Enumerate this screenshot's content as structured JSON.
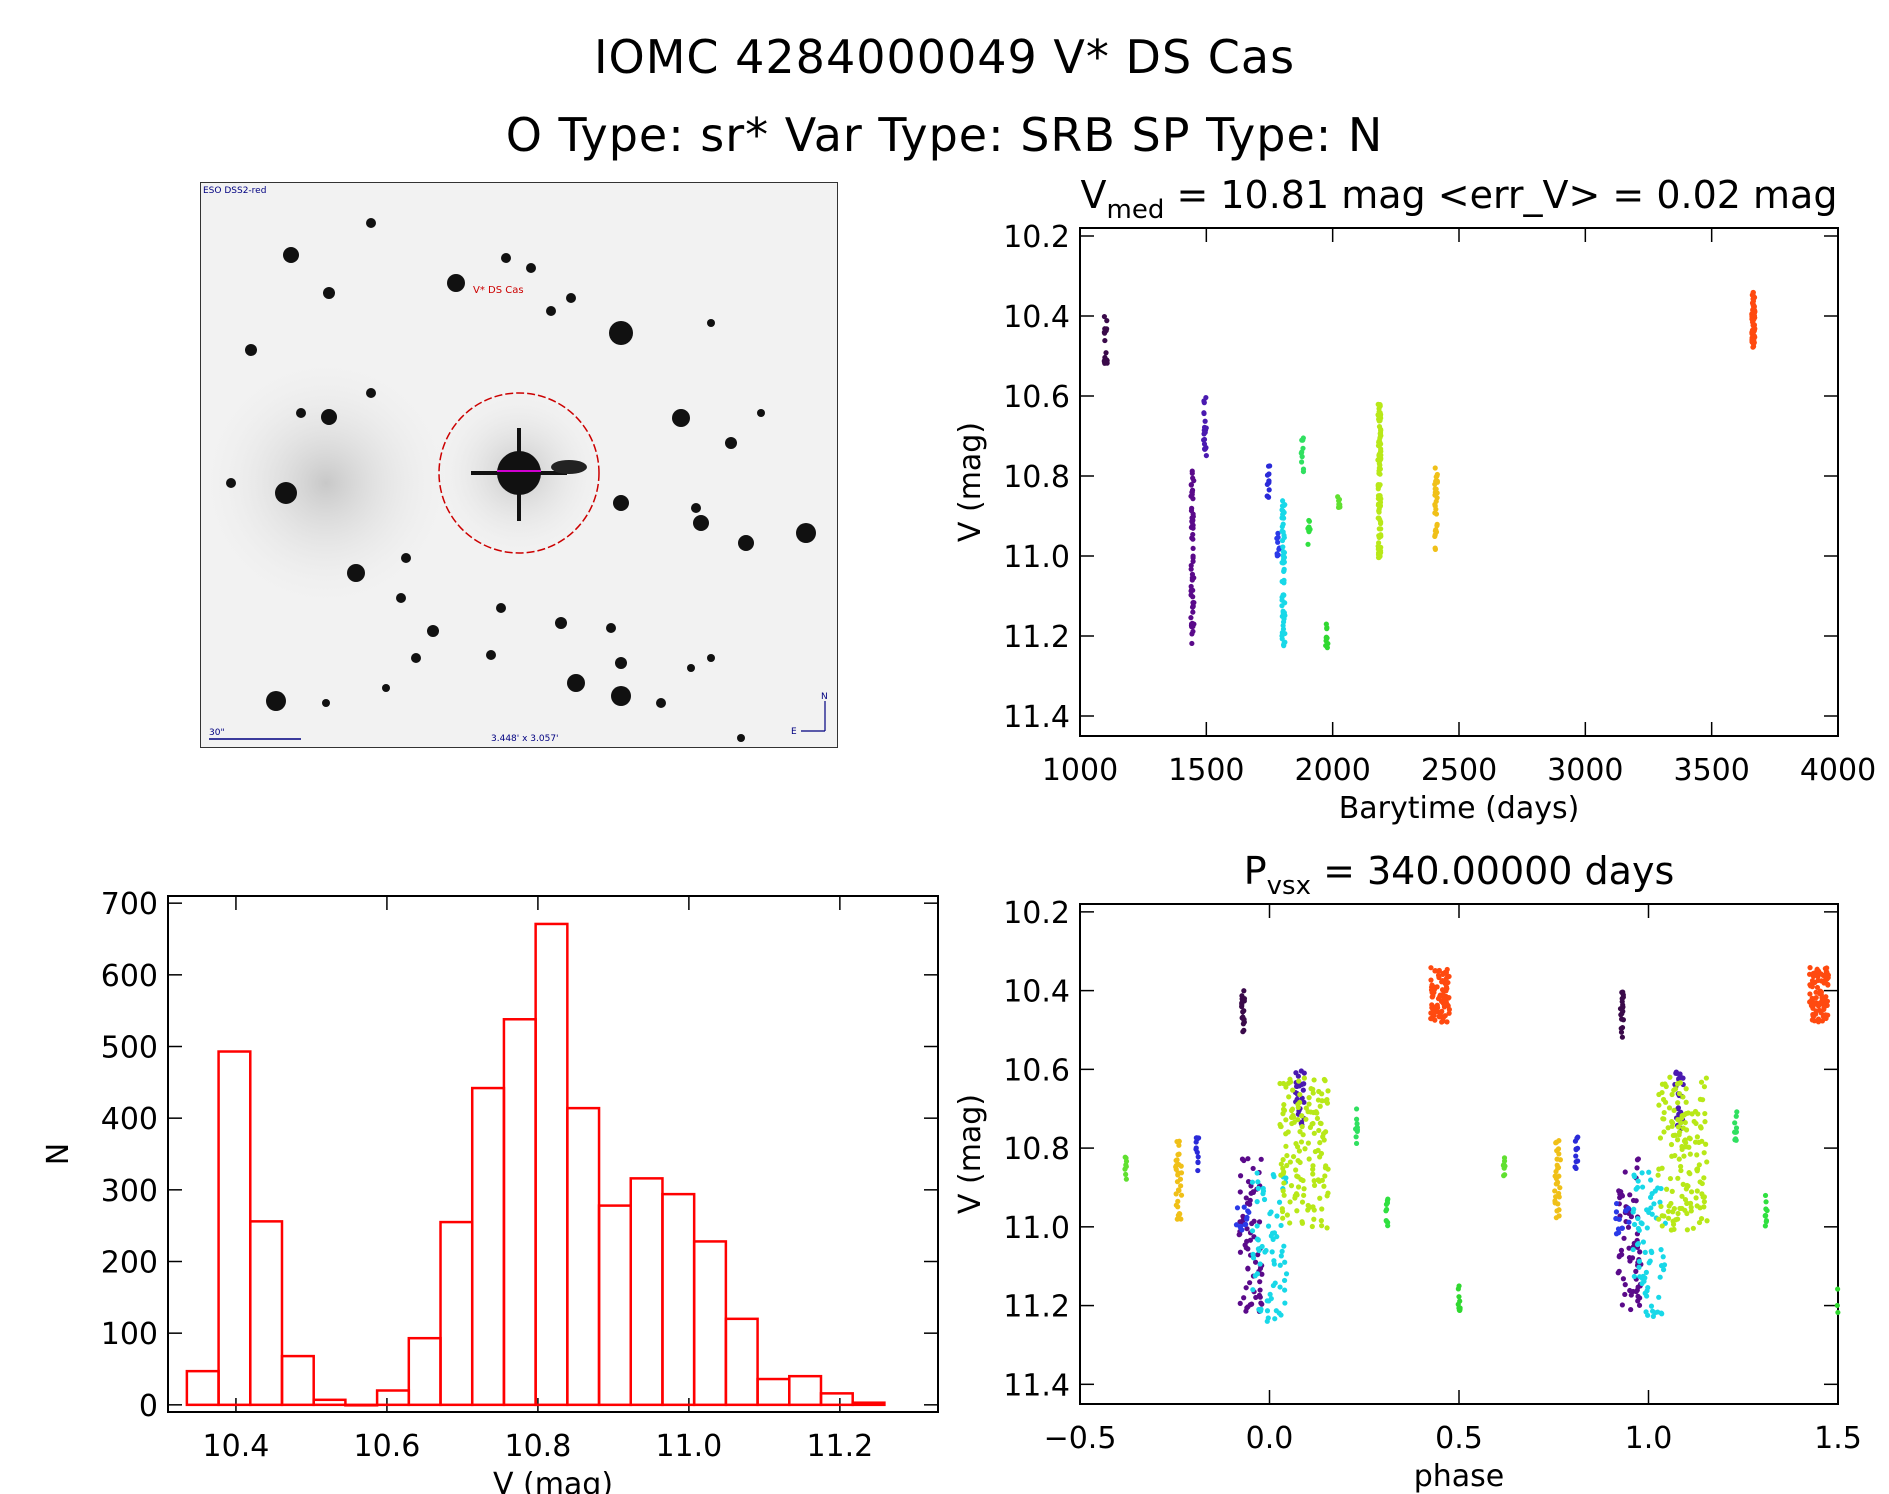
{
  "header": {
    "line1": "IOMC 4284000049    V* DS Cas",
    "line2": "O Type: sr*  Var Type: SRB  SP Type: N"
  },
  "finder": {
    "survey_label": "ESO DSS2-red",
    "target_label": "V* DS Cas",
    "scale_label": "30\"",
    "fov_label": "3.448' x 3.057'",
    "north_label": "N",
    "east_label": "E"
  },
  "chart_data": [
    {
      "type": "scatter",
      "title": "V",
      "title_sub": "med",
      "title_rest": " =  10.81 mag <err_V> =  0.02 mag",
      "xlabel": "Barytime (days)",
      "ylabel": "V (mag)",
      "xlim": [
        1000,
        4000
      ],
      "ylim": [
        11.45,
        10.18
      ],
      "xticks": [
        1000,
        1500,
        2000,
        2500,
        3000,
        3500,
        4000
      ],
      "xtick_labels": [
        "1000",
        "1500",
        "2000",
        "2500",
        "3000",
        "3500",
        "4000"
      ],
      "yticks": [
        10.2,
        10.4,
        10.6,
        10.8,
        11.0,
        11.2,
        11.4
      ],
      "ytick_labels": [
        "10.2",
        "10.4",
        "10.6",
        "10.8",
        "11.0",
        "11.2",
        "11.4"
      ],
      "clusters": [
        {
          "x": 1102,
          "y_min": 10.4,
          "y_max": 10.52,
          "color": "#3a0a4a",
          "n": 20
        },
        {
          "x": 1445,
          "y_min": 10.78,
          "y_max": 11.22,
          "color": "#5a0a8a",
          "n": 60
        },
        {
          "x": 1495,
          "y_min": 10.6,
          "y_max": 10.75,
          "color": "#4a1ab0",
          "n": 20
        },
        {
          "x": 1745,
          "y_min": 10.77,
          "y_max": 10.86,
          "color": "#2a2ad8",
          "n": 12
        },
        {
          "x": 1785,
          "y_min": 10.94,
          "y_max": 11.02,
          "color": "#2a3ae8",
          "n": 10
        },
        {
          "x": 1805,
          "y_min": 10.86,
          "y_max": 11.24,
          "color": "#18d8e8",
          "n": 60
        },
        {
          "x": 1880,
          "y_min": 10.7,
          "y_max": 10.79,
          "color": "#30e060",
          "n": 10
        },
        {
          "x": 1905,
          "y_min": 10.91,
          "y_max": 11.0,
          "color": "#30e040",
          "n": 10
        },
        {
          "x": 1978,
          "y_min": 11.15,
          "y_max": 11.23,
          "color": "#30d830",
          "n": 10
        },
        {
          "x": 2025,
          "y_min": 10.82,
          "y_max": 10.88,
          "color": "#60e030",
          "n": 8
        },
        {
          "x": 2185,
          "y_min": 10.62,
          "y_max": 11.01,
          "color": "#b8e818",
          "n": 110
        },
        {
          "x": 2410,
          "y_min": 10.77,
          "y_max": 10.99,
          "color": "#f0c018",
          "n": 30
        },
        {
          "x": 3665,
          "y_min": 10.34,
          "y_max": 10.48,
          "color": "#ff4a10",
          "n": 70
        }
      ]
    },
    {
      "type": "bar",
      "title": "",
      "xlabel": "V (mag)",
      "ylabel": "N",
      "xlim": [
        10.31,
        11.33
      ],
      "ylim": [
        -10,
        710
      ],
      "xticks": [
        10.4,
        10.6,
        10.8,
        11.0,
        11.2
      ],
      "xtick_labels": [
        "10.4",
        "10.6",
        "10.8",
        "11.0",
        "11.2"
      ],
      "yticks": [
        0,
        100,
        200,
        300,
        400,
        500,
        600,
        700
      ],
      "ytick_labels": [
        "0",
        "100",
        "200",
        "300",
        "400",
        "500",
        "600",
        "700"
      ],
      "bin_start": 10.335,
      "bin_width": 0.042,
      "values": [
        47,
        493,
        256,
        68,
        7,
        0,
        20,
        93,
        255,
        442,
        538,
        671,
        414,
        278,
        316,
        294,
        228,
        120,
        36,
        40,
        16,
        3
      ],
      "color": "#ff0000"
    },
    {
      "type": "scatter",
      "title": "P",
      "title_sub": "vsx",
      "title_rest": " =  340.00000 days",
      "xlabel": "phase",
      "ylabel": "V (mag)",
      "xlim": [
        -0.5,
        1.5
      ],
      "ylim": [
        11.45,
        10.18
      ],
      "xticks": [
        -0.5,
        0.0,
        0.5,
        1.0,
        1.5
      ],
      "xtick_labels": [
        "−0.5",
        "0.0",
        "0.5",
        "1.0",
        "1.5"
      ],
      "yticks": [
        10.2,
        10.4,
        10.6,
        10.8,
        11.0,
        11.2,
        11.4
      ],
      "ytick_labels": [
        "10.2",
        "10.4",
        "10.6",
        "10.8",
        "11.0",
        "11.2",
        "11.4"
      ],
      "clusters": [
        {
          "x": -0.07,
          "y_min": 10.4,
          "y_max": 10.52,
          "color": "#3a0a4a",
          "n": 20,
          "spread": 0.004
        },
        {
          "x": -0.05,
          "y_min": 10.82,
          "y_max": 11.22,
          "color": "#5a0a8a",
          "n": 70,
          "spread": 0.03
        },
        {
          "x": 0.08,
          "y_min": 10.6,
          "y_max": 10.75,
          "color": "#4a1ab0",
          "n": 25,
          "spread": 0.012
        },
        {
          "x": -0.19,
          "y_min": 10.77,
          "y_max": 10.86,
          "color": "#2a2ad8",
          "n": 12,
          "spread": 0.004
        },
        {
          "x": -0.07,
          "y_min": 10.94,
          "y_max": 11.02,
          "color": "#2a3ae8",
          "n": 12,
          "spread": 0.02
        },
        {
          "x": 0.0,
          "y_min": 10.86,
          "y_max": 11.24,
          "color": "#18d8e8",
          "n": 70,
          "spread": 0.045
        },
        {
          "x": 0.23,
          "y_min": 10.7,
          "y_max": 10.79,
          "color": "#30e060",
          "n": 10,
          "spread": 0.003
        },
        {
          "x": 0.31,
          "y_min": 10.91,
          "y_max": 11.0,
          "color": "#30e040",
          "n": 10,
          "spread": 0.003
        },
        {
          "x": 0.5,
          "y_min": 11.15,
          "y_max": 11.23,
          "color": "#30d830",
          "n": 10,
          "spread": 0.003
        },
        {
          "x": -0.38,
          "y_min": 10.82,
          "y_max": 10.88,
          "color": "#60e030",
          "n": 8,
          "spread": 0.003
        },
        {
          "x": 0.09,
          "y_min": 10.62,
          "y_max": 11.01,
          "color": "#b8e818",
          "n": 150,
          "spread": 0.065
        },
        {
          "x": -0.24,
          "y_min": 10.77,
          "y_max": 10.99,
          "color": "#f0c018",
          "n": 30,
          "spread": 0.008
        },
        {
          "x": 0.45,
          "y_min": 10.34,
          "y_max": 10.48,
          "color": "#ff4a10",
          "n": 90,
          "spread": 0.025
        }
      ]
    }
  ]
}
